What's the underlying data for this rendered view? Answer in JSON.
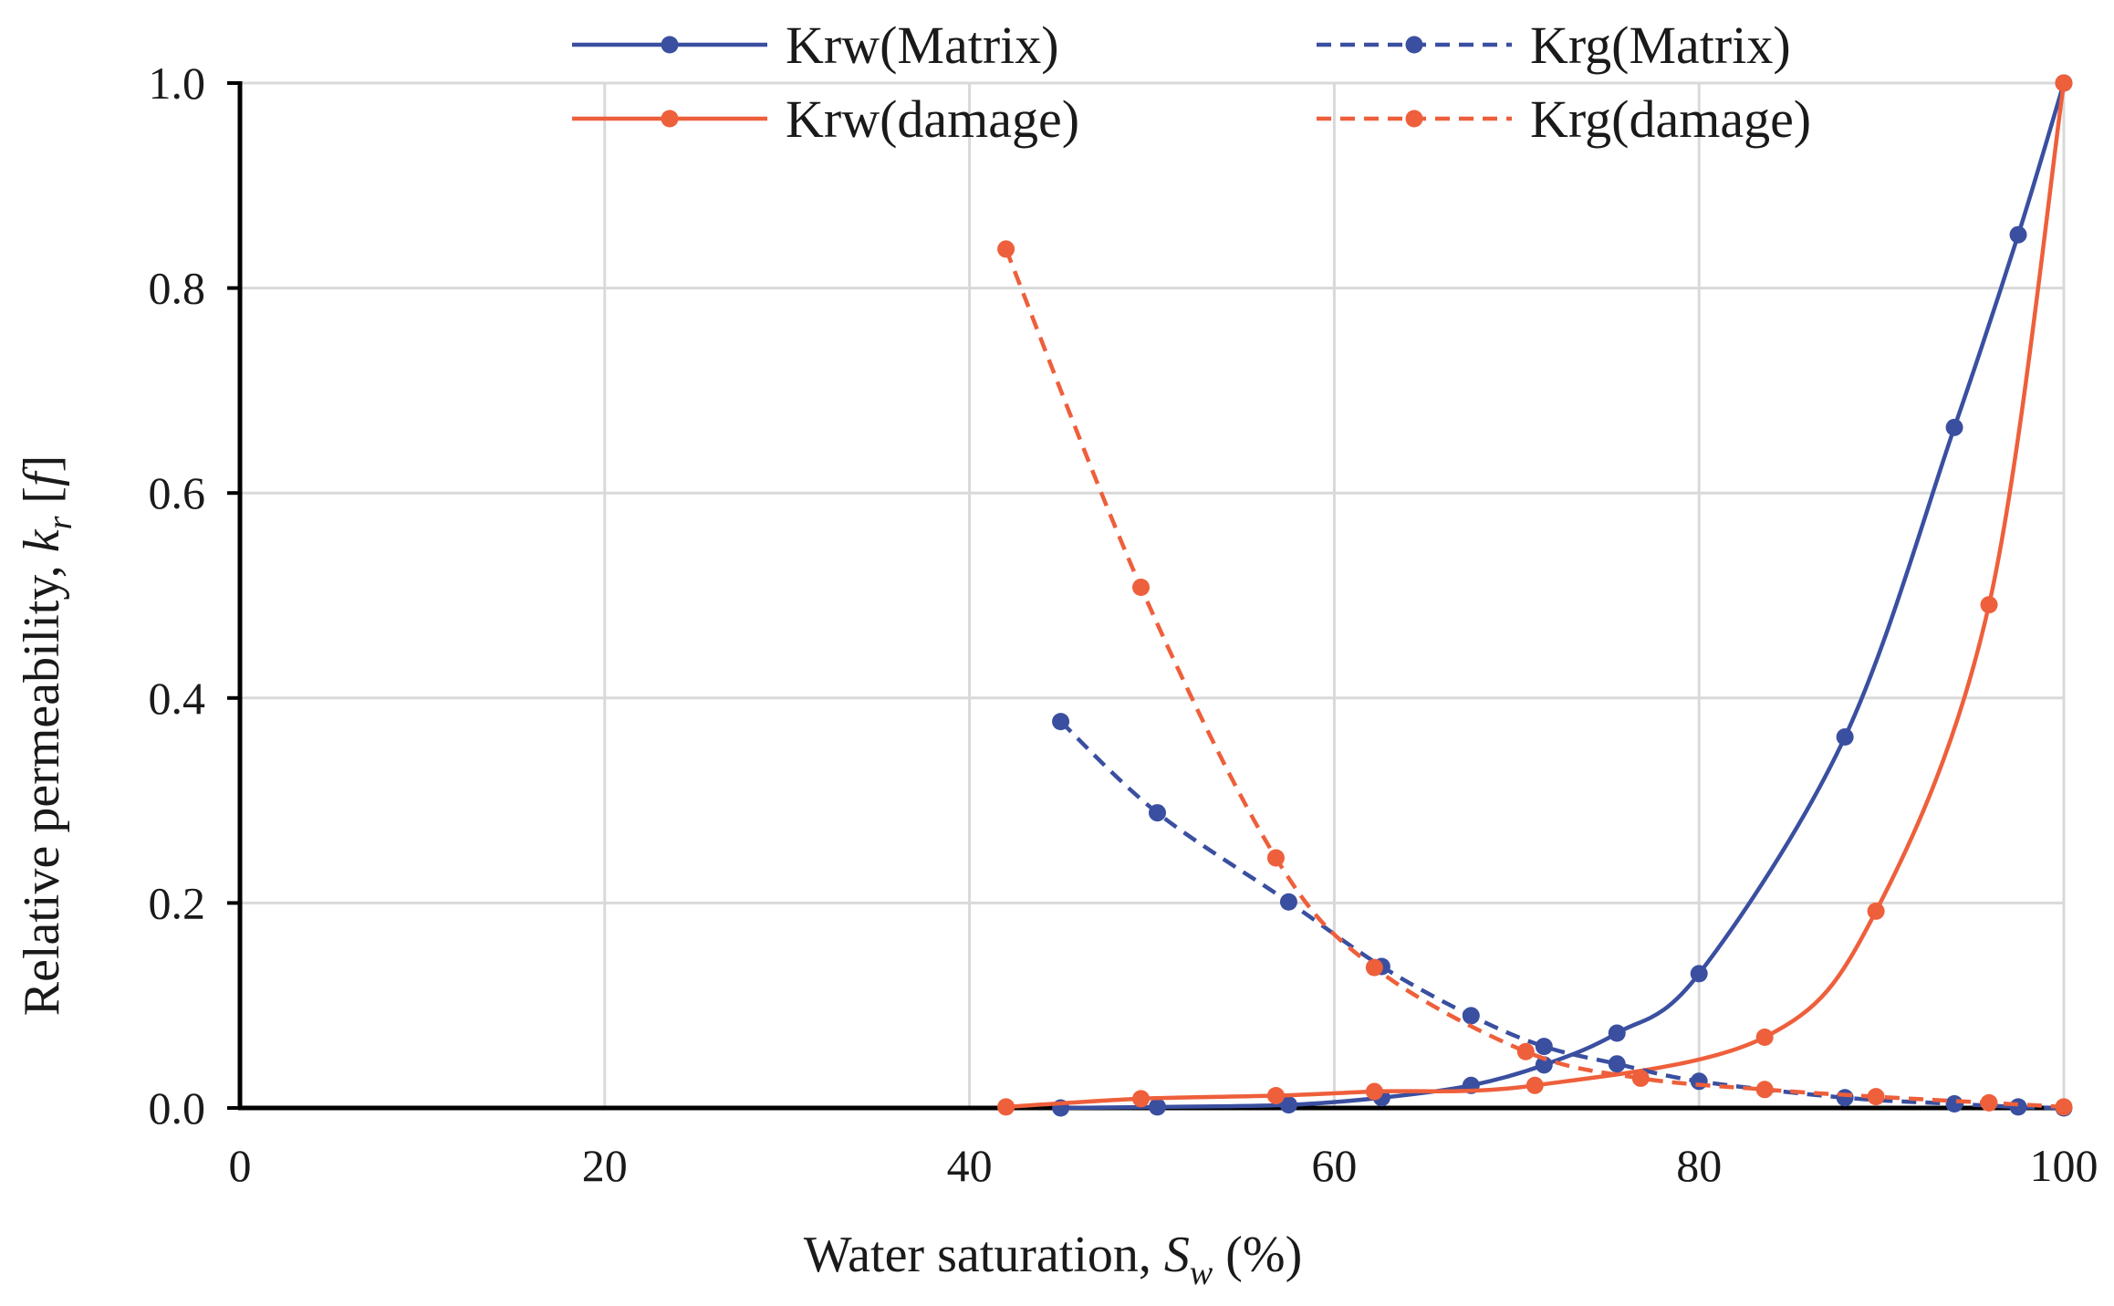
{
  "chart_data": {
    "type": "line",
    "title": "",
    "xlabel": {
      "prefix": "Water saturation, ",
      "symbol": "S",
      "subscript": "w",
      "suffix": " (%)"
    },
    "ylabel": {
      "prefix": "Relative permeability, ",
      "symbol": "k",
      "subscript": "r",
      "suffix": " [",
      "unit": "f",
      "close": "]"
    },
    "xlim": [
      0,
      100
    ],
    "ylim": [
      0,
      1.0
    ],
    "x_ticks": [
      0,
      20,
      40,
      60,
      80,
      100
    ],
    "y_ticks": [
      0.0,
      0.2,
      0.4,
      0.6,
      0.8,
      1.0
    ],
    "x_tick_labels": [
      "0",
      "20",
      "40",
      "60",
      "80",
      "100"
    ],
    "y_tick_labels": [
      "0.0",
      "0.2",
      "0.4",
      "0.6",
      "0.8",
      "1.0"
    ],
    "grid": true,
    "legend_position": "top",
    "colors": {
      "matrix": "#3a4fa0",
      "damage": "#ee5f3b"
    },
    "series": [
      {
        "name": "Krw(Matrix)",
        "color_key": "matrix",
        "dashed": false,
        "x": [
          45.0,
          50.3,
          57.5,
          62.6,
          67.5,
          71.5,
          75.5,
          80.0,
          88.0,
          94.0,
          97.5,
          100.0
        ],
        "y": [
          0.0,
          0.001,
          0.003,
          0.01,
          0.022,
          0.042,
          0.073,
          0.131,
          0.362,
          0.664,
          0.852,
          1.0
        ]
      },
      {
        "name": "Krw(damage)",
        "color_key": "damage",
        "dashed": false,
        "x": [
          42.0,
          49.4,
          56.8,
          62.2,
          71.0,
          83.6,
          89.7,
          95.9,
          100.0
        ],
        "y": [
          0.001,
          0.009,
          0.012,
          0.016,
          0.022,
          0.069,
          0.192,
          0.491,
          1.0
        ]
      },
      {
        "name": "Krg(Matrix)",
        "color_key": "matrix",
        "dashed": true,
        "x": [
          45.0,
          50.3,
          57.5,
          62.6,
          67.5,
          71.5,
          75.5,
          80.0,
          88.0,
          94.0,
          97.5,
          100.0
        ],
        "y": [
          0.377,
          0.288,
          0.201,
          0.138,
          0.09,
          0.06,
          0.043,
          0.026,
          0.01,
          0.004,
          0.001,
          0.0
        ]
      },
      {
        "name": "Krg(damage)",
        "color_key": "damage",
        "dashed": true,
        "x": [
          42.0,
          49.4,
          56.8,
          62.2,
          70.5,
          76.8,
          83.6,
          89.7,
          95.9,
          100.0
        ],
        "y": [
          0.838,
          0.508,
          0.244,
          0.137,
          0.055,
          0.029,
          0.018,
          0.011,
          0.005,
          0.001
        ]
      }
    ]
  }
}
